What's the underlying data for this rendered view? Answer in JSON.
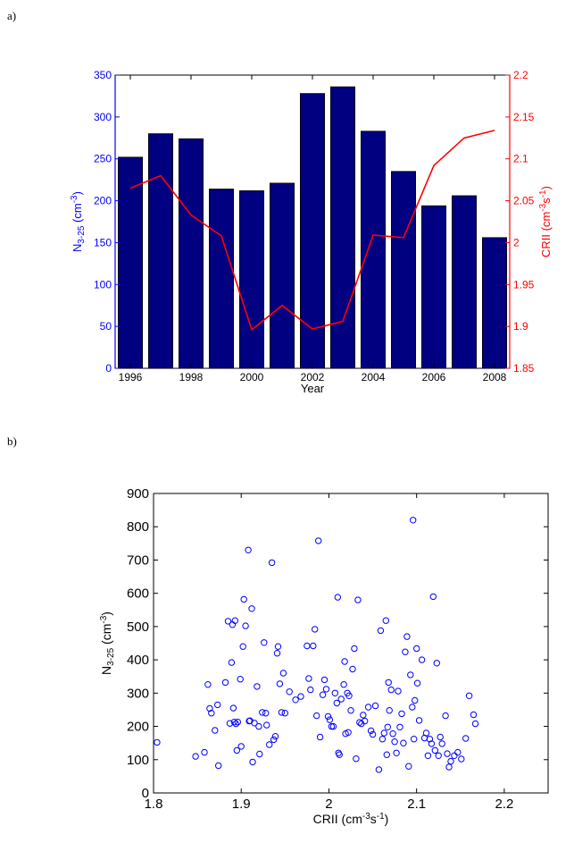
{
  "panel_labels": {
    "a": "a)",
    "b": "b)"
  },
  "chart_data": [
    {
      "type": "bar",
      "title": "",
      "xlabel": "Year",
      "ylabel_left": "N",
      "ylabel_left_sub": "3-25",
      "ylabel_left_unit_pre": " (cm",
      "ylabel_left_unit_sup": "-3",
      "ylabel_left_unit_post": ")",
      "ylabel_right": "CRII (cm",
      "ylabel_right_sup1": "-3",
      "ylabel_right_mid": "s",
      "ylabel_right_sup2": "-1",
      "ylabel_right_post": ")",
      "colors": {
        "bars": "#000080",
        "left_axis": "#0000ff",
        "right_axis": "#ff0000",
        "line": "#ff0000"
      },
      "categories": [
        1996,
        1997,
        1998,
        1999,
        2000,
        2001,
        2002,
        2003,
        2004,
        2005,
        2006,
        2007,
        2008
      ],
      "xticks": [
        "1996",
        "1998",
        "2000",
        "2002",
        "2004",
        "2006",
        "2008"
      ],
      "xlim": [
        1995.5,
        2008.5
      ],
      "ylim_left": [
        0,
        350
      ],
      "yticks_left": [
        "0",
        "50",
        "100",
        "150",
        "200",
        "250",
        "300",
        "350"
      ],
      "ylim_right": [
        1.85,
        2.2
      ],
      "yticks_right": [
        "1.85",
        "1.9",
        "1.95",
        "2",
        "2.05",
        "2.1",
        "2.15",
        "2.2"
      ],
      "series": [
        {
          "type": "bar",
          "axis": "left",
          "values": [
            252,
            280,
            274,
            214,
            212,
            221,
            328,
            336,
            283,
            235,
            194,
            206,
            156
          ]
        },
        {
          "type": "line",
          "axis": "right",
          "values": [
            2.065,
            2.08,
            2.033,
            2.008,
            1.896,
            1.925,
            1.897,
            1.906,
            2.009,
            2.006,
            2.092,
            2.125,
            2.134
          ]
        }
      ]
    },
    {
      "type": "scatter",
      "title": "",
      "xlabel": "CRII (cm",
      "xlabel_sup1": "-3",
      "xlabel_mid": "s",
      "xlabel_sup2": "-1",
      "xlabel_post": ")",
      "ylabel": "N",
      "ylabel_sub": "3-25",
      "ylabel_unit_pre": " (cm",
      "ylabel_unit_sup": "-3",
      "ylabel_unit_post": ")",
      "marker_color": "#0000ff",
      "xlim": [
        1.8,
        2.25
      ],
      "xticks": [
        "1.8",
        "1.9",
        "2",
        "2.1",
        "2.2"
      ],
      "ylim": [
        0,
        900
      ],
      "yticks": [
        "0",
        "100",
        "200",
        "300",
        "400",
        "500",
        "600",
        "700",
        "800",
        "900"
      ],
      "points": [
        [
          1.804,
          152
        ],
        [
          1.848,
          110
        ],
        [
          1.858,
          122
        ],
        [
          1.862,
          326
        ],
        [
          1.864,
          254
        ],
        [
          1.866,
          240
        ],
        [
          1.87,
          188
        ],
        [
          1.873,
          265
        ],
        [
          1.874,
          82
        ],
        [
          1.882,
          332
        ],
        [
          1.885,
          516
        ],
        [
          1.887,
          209
        ],
        [
          1.889,
          392
        ],
        [
          1.89,
          506
        ],
        [
          1.891,
          255
        ],
        [
          1.892,
          213
        ],
        [
          1.893,
          518
        ],
        [
          1.894,
          208
        ],
        [
          1.895,
          128
        ],
        [
          1.896,
          213
        ],
        [
          1.899,
          342
        ],
        [
          1.9,
          140
        ],
        [
          1.902,
          440
        ],
        [
          1.903,
          582
        ],
        [
          1.905,
          502
        ],
        [
          1.908,
          730
        ],
        [
          1.909,
          216
        ],
        [
          1.91,
          217
        ],
        [
          1.912,
          554
        ],
        [
          1.913,
          93
        ],
        [
          1.915,
          210
        ],
        [
          1.918,
          320
        ],
        [
          1.92,
          200
        ],
        [
          1.921,
          117
        ],
        [
          1.924,
          242
        ],
        [
          1.926,
          452
        ],
        [
          1.928,
          240
        ],
        [
          1.929,
          204
        ],
        [
          1.932,
          145
        ],
        [
          1.935,
          692
        ],
        [
          1.937,
          160
        ],
        [
          1.939,
          170
        ],
        [
          1.941,
          420
        ],
        [
          1.942,
          440
        ],
        [
          1.944,
          328
        ],
        [
          1.946,
          242
        ],
        [
          1.948,
          360
        ],
        [
          1.95,
          240
        ],
        [
          1.955,
          304
        ],
        [
          1.962,
          280
        ],
        [
          1.968,
          290
        ],
        [
          1.975,
          442
        ],
        [
          1.977,
          344
        ],
        [
          1.979,
          310
        ],
        [
          1.982,
          442
        ],
        [
          1.984,
          492
        ],
        [
          1.986,
          232
        ],
        [
          1.988,
          758
        ],
        [
          1.99,
          168
        ],
        [
          1.993,
          295
        ],
        [
          1.995,
          340
        ],
        [
          1.997,
          312
        ],
        [
          1.999,
          230
        ],
        [
          2.001,
          220
        ],
        [
          2.003,
          200
        ],
        [
          2.005,
          200
        ],
        [
          2.007,
          300
        ],
        [
          2.009,
          270
        ],
        [
          2.01,
          588
        ],
        [
          2.011,
          120
        ],
        [
          2.012,
          115
        ],
        [
          2.014,
          282
        ],
        [
          2.017,
          326
        ],
        [
          2.018,
          395
        ],
        [
          2.019,
          178
        ],
        [
          2.021,
          300
        ],
        [
          2.022,
          182
        ],
        [
          2.023,
          292
        ],
        [
          2.025,
          248
        ],
        [
          2.027,
          372
        ],
        [
          2.029,
          434
        ],
        [
          2.031,
          103
        ],
        [
          2.033,
          580
        ],
        [
          2.035,
          212
        ],
        [
          2.037,
          208
        ],
        [
          2.039,
          234
        ],
        [
          2.041,
          216
        ],
        [
          2.045,
          258
        ],
        [
          2.048,
          187
        ],
        [
          2.05,
          176
        ],
        [
          2.053,
          262
        ],
        [
          2.057,
          70
        ],
        [
          2.059,
          488
        ],
        [
          2.061,
          162
        ],
        [
          2.063,
          180
        ],
        [
          2.065,
          518
        ],
        [
          2.066,
          115
        ],
        [
          2.067,
          198
        ],
        [
          2.068,
          332
        ],
        [
          2.069,
          248
        ],
        [
          2.071,
          310
        ],
        [
          2.073,
          178
        ],
        [
          2.075,
          154
        ],
        [
          2.077,
          120
        ],
        [
          2.079,
          306
        ],
        [
          2.081,
          198
        ],
        [
          2.083,
          238
        ],
        [
          2.085,
          150
        ],
        [
          2.087,
          424
        ],
        [
          2.089,
          470
        ],
        [
          2.091,
          80
        ],
        [
          2.093,
          355
        ],
        [
          2.095,
          258
        ],
        [
          2.096,
          820
        ],
        [
          2.097,
          162
        ],
        [
          2.098,
          278
        ],
        [
          2.1,
          434
        ],
        [
          2.101,
          330
        ],
        [
          2.103,
          218
        ],
        [
          2.106,
          400
        ],
        [
          2.109,
          165
        ],
        [
          2.111,
          180
        ],
        [
          2.113,
          112
        ],
        [
          2.115,
          162
        ],
        [
          2.117,
          148
        ],
        [
          2.119,
          590
        ],
        [
          2.121,
          128
        ],
        [
          2.123,
          390
        ],
        [
          2.125,
          112
        ],
        [
          2.127,
          168
        ],
        [
          2.129,
          148
        ],
        [
          2.133,
          232
        ],
        [
          2.135,
          118
        ],
        [
          2.137,
          78
        ],
        [
          2.139,
          95
        ],
        [
          2.143,
          112
        ],
        [
          2.147,
          122
        ],
        [
          2.151,
          102
        ],
        [
          2.156,
          164
        ],
        [
          2.16,
          292
        ],
        [
          2.165,
          235
        ],
        [
          2.167,
          208
        ]
      ]
    }
  ]
}
